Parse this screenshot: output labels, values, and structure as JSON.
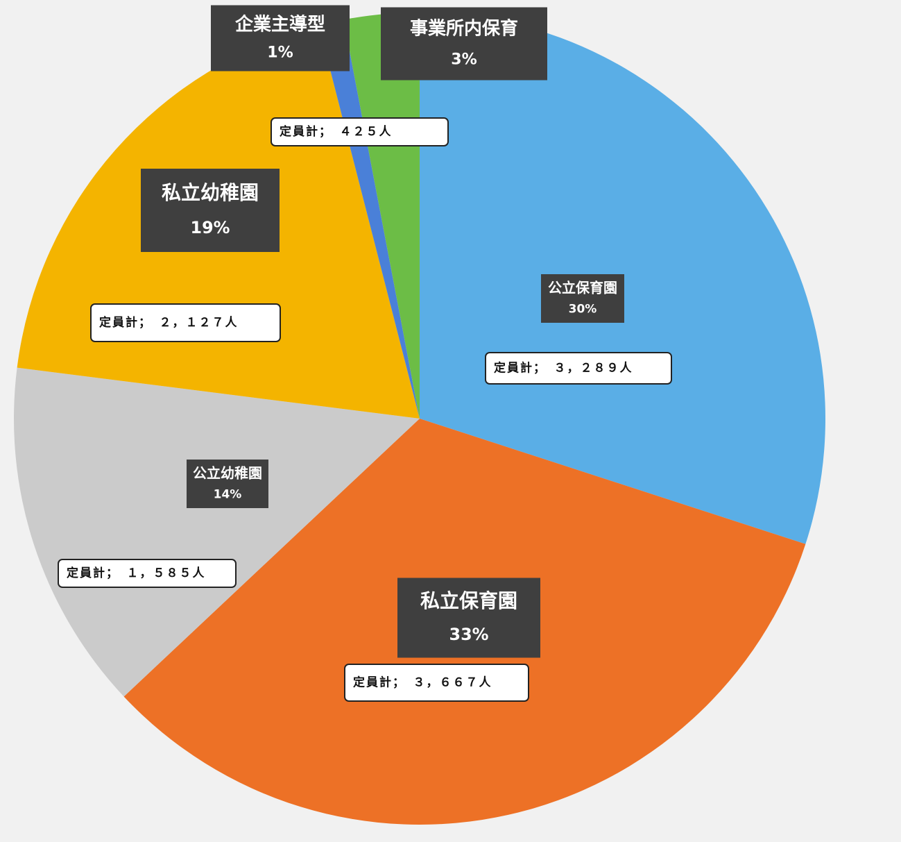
{
  "chart_data": {
    "type": "pie",
    "categories": [
      "公立保育園",
      "私立保育園",
      "公立幼稚園",
      "私立幼稚園",
      "企業主導型",
      "事業所内保育"
    ],
    "values": [
      30,
      33,
      14,
      19,
      1,
      3
    ],
    "value_labels": [
      "30%",
      "33%",
      "14%",
      "19%",
      "1%",
      "3%"
    ],
    "colors": [
      "#5aaee6",
      "#ed7126",
      "#cbcbcb",
      "#f4b400",
      "#4a80d8",
      "#6cbd46"
    ],
    "annotations": [
      "定員計；　３，２８９人",
      "定員計；　３，６６７人",
      "定員計；　１，５８５人",
      "定員計；　２，１２７人",
      "定員計；　４２５人"
    ]
  }
}
